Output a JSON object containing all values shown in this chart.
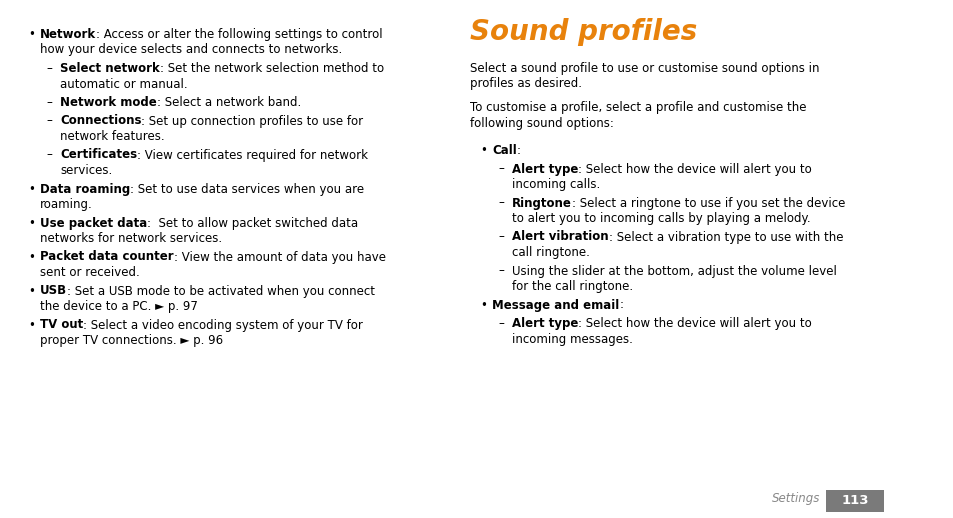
{
  "bg_color": "#ffffff",
  "title": "Sound profiles",
  "title_color": "#e8820c",
  "title_font_size": 20,
  "footer_text": "Settings",
  "footer_page": "113",
  "footer_page_bg": "#7a7a7a",
  "footer_page_color": "#ffffff",
  "left_items": [
    {
      "level": 0,
      "bold": "Network",
      "rest": ": Access or alter the following settings to control\nhow your device selects and connects to networks."
    },
    {
      "level": 1,
      "bold": "Select network",
      "rest": ": Set the network selection method to\nautomatic or manual."
    },
    {
      "level": 1,
      "bold": "Network mode",
      "rest": ": Select a network band."
    },
    {
      "level": 1,
      "bold": "Connections",
      "rest": ": Set up connection profiles to use for\nnetwork features."
    },
    {
      "level": 1,
      "bold": "Certificates",
      "rest": ": View certificates required for network\nservices."
    },
    {
      "level": 0,
      "bold": "Data roaming",
      "rest": ": Set to use data services when you are\nroaming."
    },
    {
      "level": 0,
      "bold": "Use packet data",
      "rest": ":  Set to allow packet switched data\nnetworks for network services."
    },
    {
      "level": 0,
      "bold": "Packet data counter",
      "rest": ": View the amount of data you have\nsent or received."
    },
    {
      "level": 0,
      "bold": "USB",
      "rest": ": Set a USB mode to be activated when you connect\nthe device to a PC. ► p. 97"
    },
    {
      "level": 0,
      "bold": "TV out",
      "rest": ": Select a video encoding system of your TV for\nproper TV connections. ► p. 96"
    }
  ],
  "right_intro": [
    "Select a sound profile to use or customise sound options in\nprofiles as desired.",
    "To customise a profile, select a profile and customise the\nfollowing sound options:"
  ],
  "right_items": [
    {
      "level": 0,
      "bold": "Call",
      "rest": ":"
    },
    {
      "level": 1,
      "bold": "Alert type",
      "rest": ": Select how the device will alert you to\nincoming calls."
    },
    {
      "level": 1,
      "bold": "Ringtone",
      "rest": ": Select a ringtone to use if you set the device\nto alert you to incoming calls by playing a melody."
    },
    {
      "level": 1,
      "bold": "Alert vibration",
      "rest": ": Select a vibration type to use with the\ncall ringtone."
    },
    {
      "level": 1,
      "bold": "",
      "rest": "Using the slider at the bottom, adjust the volume level\nfor the call ringtone."
    },
    {
      "level": 0,
      "bold": "Message and email",
      "rest": ":"
    },
    {
      "level": 1,
      "bold": "Alert type",
      "rest": ": Select how the device will alert you to\nincoming messages."
    }
  ]
}
